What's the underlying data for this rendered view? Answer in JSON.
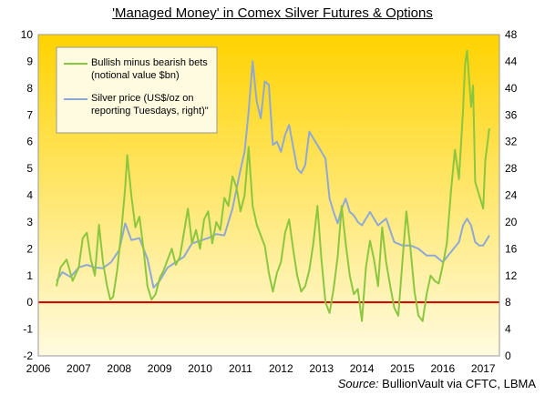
{
  "chart_data": {
    "type": "line",
    "title": "'Managed Money' in Comex Silver Futures & Options",
    "source_label": "Source:",
    "source_text": "BullionVault via CFTC, LBMA",
    "x_ticks": [
      "2006",
      "2007",
      "2008",
      "2009",
      "2010",
      "2011",
      "2012",
      "2013",
      "2014",
      "2015",
      "2016",
      "2017"
    ],
    "xlim": [
      2006,
      2017.4
    ],
    "y_left": {
      "ticks": [
        "-2",
        "-1",
        "0",
        "1",
        "2",
        "3",
        "4",
        "5",
        "6",
        "7",
        "8",
        "9",
        "10"
      ],
      "ylim": [
        -2,
        10
      ]
    },
    "y_right": {
      "ticks": [
        "0",
        "4",
        "8",
        "12",
        "16",
        "20",
        "24",
        "28",
        "32",
        "36",
        "40",
        "44",
        "48"
      ],
      "ylim": [
        0,
        48
      ]
    },
    "background_gradient": [
      "#ffd300",
      "#fffbe0"
    ],
    "zero_line_color": "#cc0000",
    "series": [
      {
        "name": "Bullish minus bearish bets (notional value $bn)",
        "axis": "left",
        "color": "#8cc63f",
        "x": [
          2006.45,
          2006.55,
          2006.7,
          2006.85,
          2007.0,
          2007.1,
          2007.2,
          2007.3,
          2007.4,
          2007.5,
          2007.6,
          2007.7,
          2007.78,
          2007.85,
          2007.95,
          2008.05,
          2008.15,
          2008.2,
          2008.3,
          2008.4,
          2008.5,
          2008.6,
          2008.7,
          2008.8,
          2008.9,
          2009.0,
          2009.1,
          2009.2,
          2009.3,
          2009.4,
          2009.5,
          2009.6,
          2009.7,
          2009.8,
          2009.9,
          2010.0,
          2010.1,
          2010.2,
          2010.3,
          2010.4,
          2010.5,
          2010.6,
          2010.7,
          2010.8,
          2010.9,
          2011.0,
          2011.1,
          2011.2,
          2011.3,
          2011.4,
          2011.5,
          2011.6,
          2011.7,
          2011.8,
          2011.9,
          2012.0,
          2012.1,
          2012.2,
          2012.3,
          2012.4,
          2012.5,
          2012.6,
          2012.7,
          2012.8,
          2012.9,
          2013.0,
          2013.1,
          2013.2,
          2013.3,
          2013.4,
          2013.5,
          2013.6,
          2013.7,
          2013.8,
          2013.9,
          2014.0,
          2014.1,
          2014.2,
          2014.3,
          2014.4,
          2014.5,
          2014.6,
          2014.7,
          2014.8,
          2014.9,
          2015.0,
          2015.1,
          2015.2,
          2015.3,
          2015.4,
          2015.5,
          2015.6,
          2015.7,
          2015.8,
          2015.9,
          2016.0,
          2016.1,
          2016.2,
          2016.3,
          2016.4,
          2016.5,
          2016.55,
          2016.6,
          2016.7,
          2016.75,
          2016.8,
          2016.9,
          2017.0,
          2017.05,
          2017.15
        ],
        "values": [
          0.6,
          1.3,
          1.6,
          0.8,
          1.3,
          2.4,
          2.6,
          1.6,
          1.0,
          2.9,
          1.5,
          0.6,
          0.1,
          0.2,
          1.2,
          2.6,
          4.3,
          5.5,
          4.0,
          2.8,
          3.2,
          2.0,
          0.6,
          0.1,
          0.3,
          0.9,
          1.2,
          1.6,
          2.0,
          1.4,
          1.7,
          2.6,
          3.5,
          2.2,
          2.7,
          2.0,
          3.1,
          3.4,
          2.2,
          3.0,
          2.7,
          3.9,
          3.6,
          4.7,
          4.3,
          3.4,
          4.0,
          5.8,
          3.6,
          2.9,
          2.5,
          2.1,
          1.1,
          0.4,
          1.1,
          1.5,
          2.6,
          3.1,
          2.0,
          1.0,
          0.4,
          0.6,
          1.2,
          2.2,
          3.6,
          1.6,
          0.0,
          -0.4,
          0.5,
          1.7,
          3.6,
          2.2,
          1.0,
          0.3,
          0.5,
          -0.7,
          1.3,
          2.3,
          1.6,
          0.6,
          2.8,
          1.5,
          0.6,
          -0.2,
          -0.5,
          1.5,
          3.4,
          2.0,
          0.4,
          -0.5,
          -0.7,
          0.3,
          1.0,
          0.8,
          0.7,
          1.4,
          2.2,
          4.1,
          5.7,
          4.6,
          7.2,
          8.9,
          9.4,
          7.3,
          8.1,
          4.5,
          4.0,
          3.5,
          5.3,
          6.5
        ]
      },
      {
        "name": "Silver price (US$/oz on reporting Tuesdays, right)\"",
        "axis": "right",
        "color": "#8fa8d6",
        "x": [
          2006.45,
          2006.6,
          2006.8,
          2007.0,
          2007.2,
          2007.4,
          2007.6,
          2007.8,
          2008.0,
          2008.15,
          2008.3,
          2008.5,
          2008.7,
          2008.85,
          2009.0,
          2009.2,
          2009.4,
          2009.6,
          2009.8,
          2010.0,
          2010.2,
          2010.4,
          2010.6,
          2010.8,
          2011.0,
          2011.1,
          2011.2,
          2011.3,
          2011.4,
          2011.5,
          2011.6,
          2011.7,
          2011.8,
          2011.9,
          2012.0,
          2012.1,
          2012.2,
          2012.4,
          2012.5,
          2012.6,
          2012.7,
          2012.8,
          2012.9,
          2013.0,
          2013.1,
          2013.2,
          2013.3,
          2013.4,
          2013.5,
          2013.6,
          2013.7,
          2013.8,
          2013.9,
          2014.0,
          2014.2,
          2014.4,
          2014.6,
          2014.8,
          2015.0,
          2015.2,
          2015.4,
          2015.6,
          2015.8,
          2016.0,
          2016.2,
          2016.4,
          2016.5,
          2016.6,
          2016.7,
          2016.8,
          2016.9,
          2017.0,
          2017.15
        ],
        "values": [
          11.2,
          12.5,
          11.8,
          13.2,
          13.6,
          13.2,
          13.1,
          14.0,
          15.8,
          19.8,
          17.3,
          17.6,
          14.5,
          10.2,
          11.2,
          13.2,
          14.0,
          14.8,
          16.8,
          17.2,
          17.6,
          18.2,
          18.0,
          22.0,
          27.8,
          30.5,
          36.5,
          44.0,
          38.0,
          35.5,
          41.0,
          40.5,
          31.5,
          32.0,
          30.5,
          33.0,
          34.5,
          28.0,
          27.3,
          28.5,
          33.5,
          32.5,
          31.5,
          30.5,
          29.5,
          23.5,
          21.5,
          19.8,
          22.0,
          23.5,
          21.5,
          21.0,
          20.0,
          19.5,
          21.5,
          19.5,
          20.5,
          17.0,
          16.5,
          16.5,
          16.0,
          15.0,
          15.0,
          14.0,
          15.5,
          17.0,
          19.5,
          20.5,
          19.5,
          17.0,
          16.5,
          16.5,
          18.0
        ]
      }
    ],
    "legend_position": "top-left",
    "legend_lines": [
      [
        "Bullish minus bearish bets",
        "(notional value $bn)"
      ],
      [
        "Silver price (US$/oz on",
        "reporting Tuesdays, right)\""
      ]
    ]
  }
}
